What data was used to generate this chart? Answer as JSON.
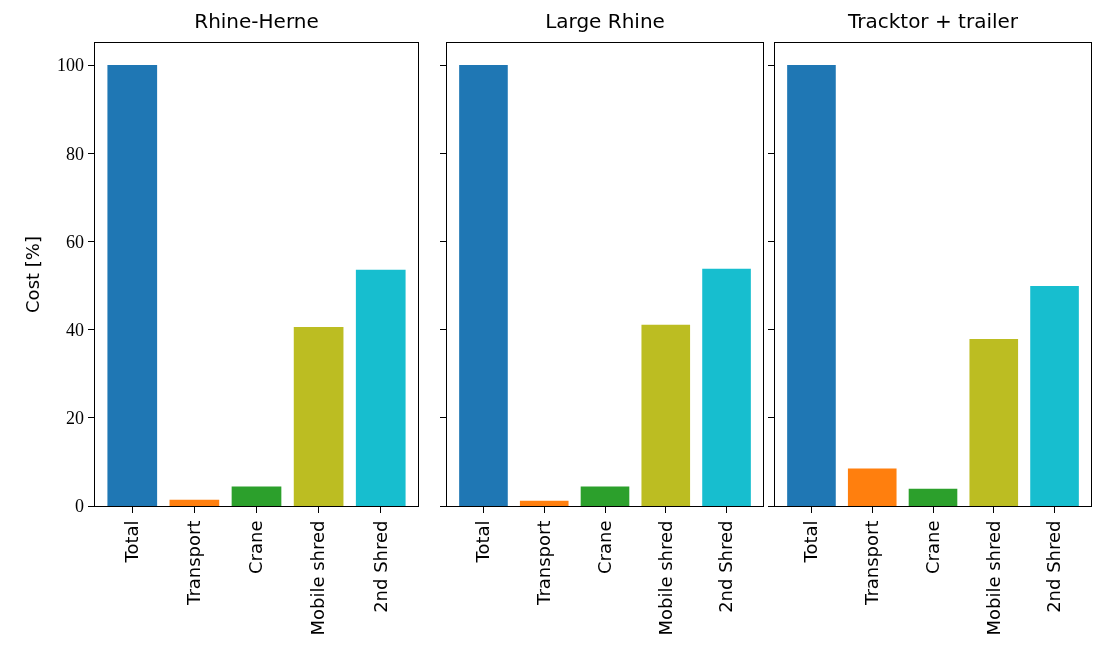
{
  "chart_data": [
    {
      "type": "bar",
      "title": "Rhine-Herne",
      "ylabel": "Cost [%]",
      "categories": [
        "Total",
        "Transport",
        "Crane",
        "Mobile shred",
        "2nd Shred"
      ],
      "values": [
        100,
        1.4,
        4.4,
        40.6,
        53.6
      ],
      "colors": [
        "#1f77b4",
        "#ff7f0e",
        "#2ca02c",
        "#bcbd22",
        "#17becf"
      ],
      "ylim": [
        0,
        105
      ],
      "yticks": [
        0,
        20,
        40,
        60,
        80,
        100
      ]
    },
    {
      "type": "bar",
      "title": "Large Rhine",
      "categories": [
        "Total",
        "Transport",
        "Crane",
        "Mobile shred",
        "2nd Shred"
      ],
      "values": [
        100,
        1.2,
        4.4,
        41.1,
        53.8
      ],
      "colors": [
        "#1f77b4",
        "#ff7f0e",
        "#2ca02c",
        "#bcbd22",
        "#17becf"
      ],
      "ylim": [
        0,
        105
      ],
      "yticks": [
        0,
        20,
        40,
        60,
        80,
        100
      ],
      "tick_labels": "x"
    },
    {
      "type": "bar",
      "title": "Tracktor + trailer",
      "categories": [
        "Total",
        "Transport",
        "Crane",
        "Mobile shred",
        "2nd Shred"
      ],
      "values": [
        100,
        8.5,
        3.9,
        37.9,
        49.9
      ],
      "colors": [
        "#1f77b4",
        "#ff7f0e",
        "#2ca02c",
        "#bcbd22",
        "#17becf"
      ],
      "ylim": [
        0,
        105
      ],
      "yticks": [
        0,
        20,
        40,
        60,
        80,
        100
      ],
      "tick_labels": "x"
    }
  ]
}
